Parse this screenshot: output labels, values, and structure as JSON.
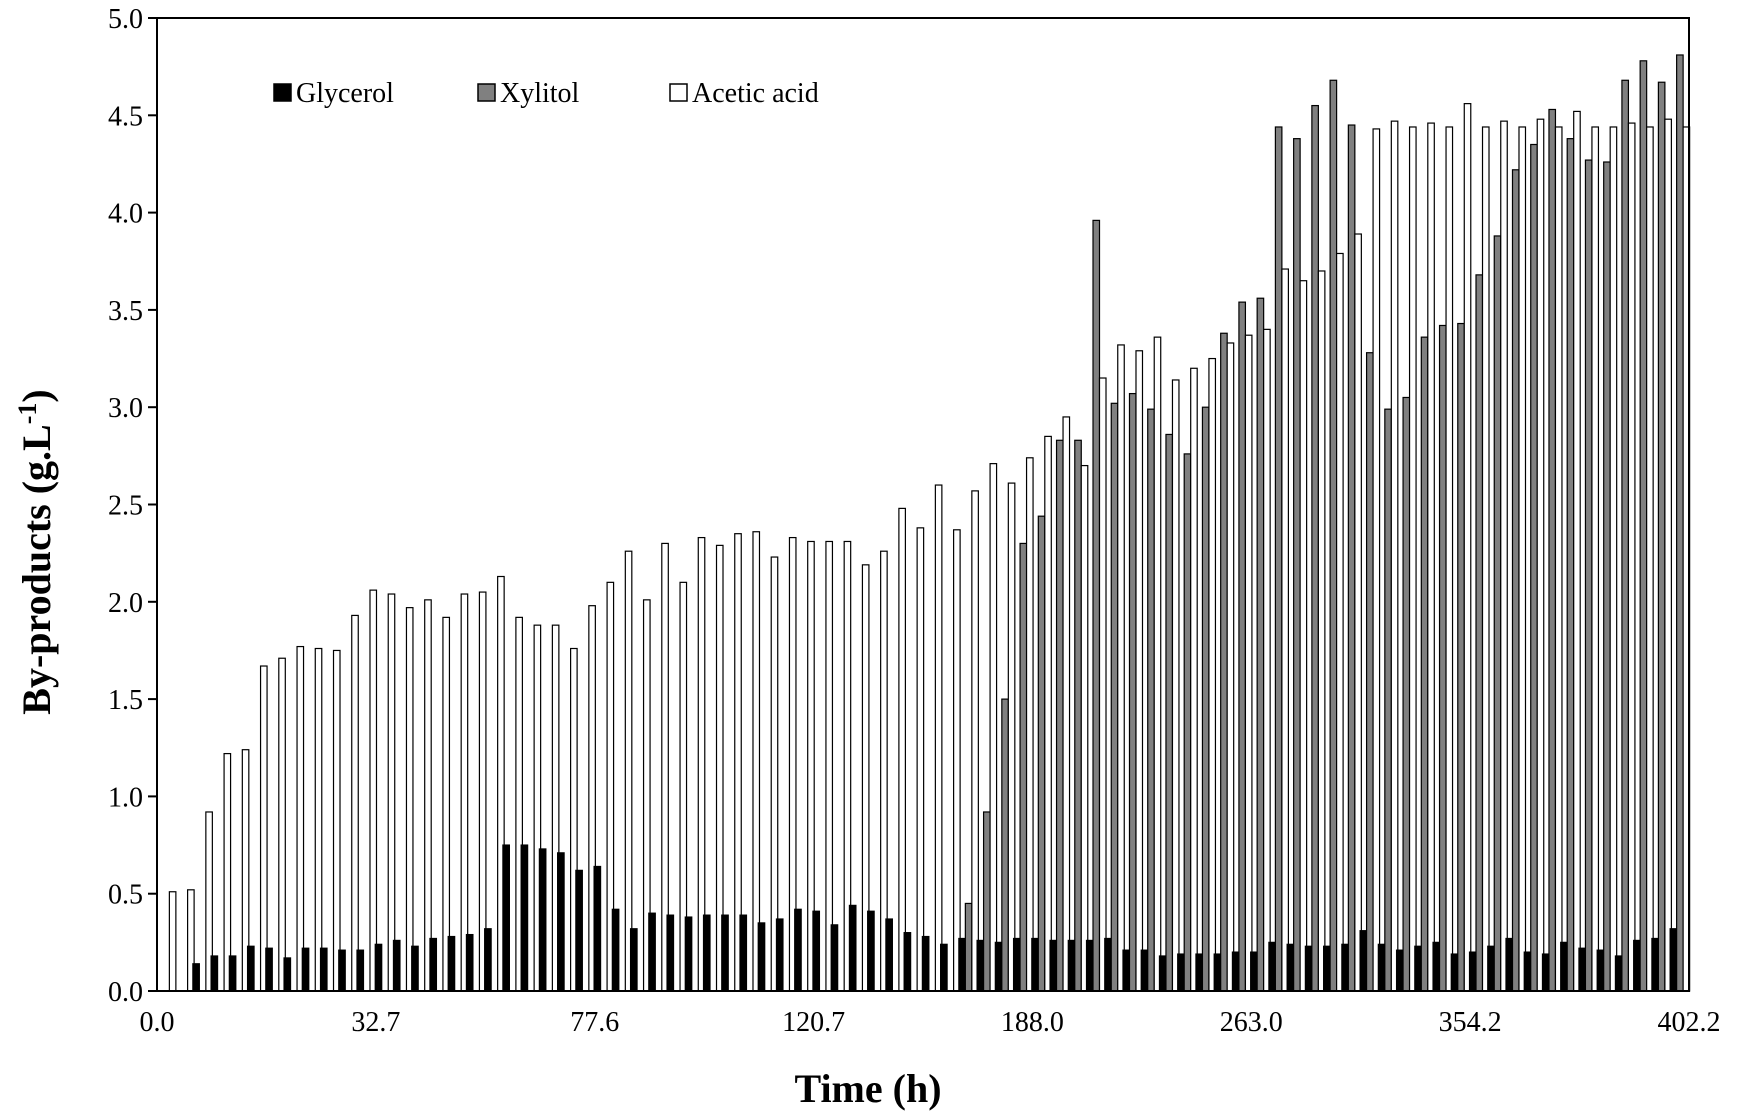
{
  "chart_data": {
    "type": "bar",
    "title": "",
    "xlabel": "Time (h)",
    "ylabel_main": "By-products (g.L",
    "ylabel_sup": "-1",
    "ylabel_close": ")",
    "ylim": [
      0,
      5.0
    ],
    "y_ticks": [
      "0.0",
      "0.5",
      "1.0",
      "1.5",
      "2.0",
      "2.5",
      "3.0",
      "3.5",
      "4.0",
      "4.5",
      "5.0"
    ],
    "x_tick_labels": [
      "0.0",
      "32.7",
      "77.6",
      "120.7",
      "188.0",
      "263.0",
      "354.2",
      "402.2"
    ],
    "legend_position": "top-left",
    "legend": [
      {
        "name": "Glycerol",
        "color": "#000000"
      },
      {
        "name": "Xylitol",
        "color": "#808080"
      },
      {
        "name": "Acetic acid",
        "color": "#ffffff"
      }
    ],
    "series": [
      {
        "name": "Glycerol",
        "color": "#000000",
        "values": [
          0,
          0,
          0.14,
          0.18,
          0.18,
          0.23,
          0.22,
          0.17,
          0.22,
          0.22,
          0.21,
          0.21,
          0.24,
          0.26,
          0.23,
          0.27,
          0.28,
          0.29,
          0.32,
          0.75,
          0.75,
          0.73,
          0.71,
          0.62,
          0.64,
          0.42,
          0.32,
          0.4,
          0.39,
          0.38,
          0.39,
          0.39,
          0.39,
          0.35,
          0.37,
          0.42,
          0.41,
          0.34,
          0.44,
          0.41,
          0.37,
          0.3,
          0.28,
          0.24,
          0.27,
          0.26,
          0.25,
          0.27,
          0.27,
          0.26,
          0.26,
          0.26,
          0.27,
          0.21,
          0.21,
          0.18,
          0.19,
          0.19,
          0.19,
          0.2,
          0.2,
          0.25,
          0.24,
          0.23,
          0.23,
          0.24,
          0.31,
          0.24,
          0.21,
          0.23,
          0.25,
          0.19,
          0.2,
          0.23,
          0.27,
          0.2,
          0.19,
          0.25,
          0.22,
          0.21,
          0.18,
          0.26,
          0.27,
          0.32
        ]
      },
      {
        "name": "Xylitol",
        "color": "#808080",
        "values": [
          0,
          0,
          0,
          0,
          0,
          0,
          0,
          0,
          0,
          0,
          0,
          0,
          0,
          0,
          0,
          0,
          0,
          0,
          0,
          0,
          0,
          0,
          0,
          0,
          0,
          0,
          0,
          0,
          0,
          0,
          0,
          0,
          0,
          0,
          0,
          0,
          0,
          0,
          0,
          0,
          0,
          0,
          0,
          0,
          0.45,
          0.92,
          1.5,
          2.3,
          2.44,
          2.83,
          2.83,
          3.96,
          3.02,
          3.07,
          2.99,
          2.86,
          2.76,
          3.0,
          3.38,
          3.54,
          3.56,
          4.44,
          4.38,
          4.55,
          4.68,
          4.45,
          3.28,
          2.99,
          3.05,
          3.36,
          3.42,
          3.43,
          3.68,
          3.88,
          4.22,
          4.35,
          4.53,
          4.38,
          4.27,
          4.26,
          4.68,
          4.78,
          4.67,
          4.81
        ]
      },
      {
        "name": "Acetic acid",
        "color": "#ffffff",
        "values": [
          0.51,
          0.52,
          0.92,
          1.22,
          1.24,
          1.67,
          1.71,
          1.77,
          1.76,
          1.75,
          1.93,
          2.06,
          2.04,
          1.97,
          2.01,
          1.92,
          2.04,
          2.05,
          2.13,
          1.92,
          1.88,
          1.88,
          1.76,
          1.98,
          2.1,
          2.26,
          2.01,
          2.3,
          2.1,
          2.33,
          2.29,
          2.35,
          2.36,
          2.23,
          2.33,
          2.31,
          2.31,
          2.31,
          2.19,
          2.26,
          2.48,
          2.38,
          2.6,
          2.37,
          2.57,
          2.71,
          2.61,
          2.74,
          2.85,
          2.95,
          2.7,
          3.15,
          3.32,
          3.29,
          3.36,
          3.14,
          3.2,
          3.25,
          3.33,
          3.37,
          3.4,
          3.71,
          3.65,
          3.7,
          3.79,
          3.89,
          4.43,
          4.47,
          4.44,
          4.46,
          4.44,
          4.56,
          4.44,
          4.47,
          4.44,
          4.48,
          4.44,
          4.52,
          4.44,
          4.44,
          4.46,
          4.44,
          4.48,
          4.44
        ]
      }
    ]
  }
}
